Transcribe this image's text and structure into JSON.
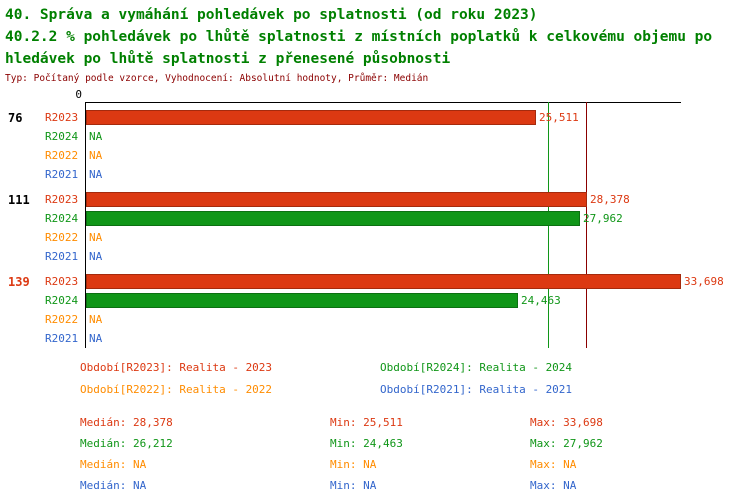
{
  "header": {
    "title_line1": "40. Správa a vymáhání pohledávek po splatnosti (od roku 2023)",
    "title_line2": "40.2.2 % pohledávek po lhůtě splatnosti z místních poplatků k celkovému objemu po",
    "title_line3": "hledávek po lhůtě splatnosti z přenesené působnosti",
    "meta": "Typ: Počítaný podle vzorce, Vyhodnocení: Absolutní hodnoty, Průměr: Medián"
  },
  "colors": {
    "title_green": "#008000",
    "meta_dark_red": "#8b0000",
    "axis_black": "#000000",
    "red": "#dc3912",
    "green": "#109618",
    "orange": "#ff8c00",
    "blue": "#3366cc"
  },
  "chart_data": {
    "type": "bar",
    "orientation": "horizontal",
    "zero_label": "0",
    "xmax": 33698,
    "grid": false,
    "series_colors": {
      "R2023": "#dc3912",
      "R2024": "#109618",
      "R2022": "#ff8c00",
      "R2021": "#3366cc"
    },
    "groups": [
      {
        "label": "76",
        "label_color": "#000000",
        "rows": [
          {
            "series": "R2023",
            "value": 25511,
            "display": "25,511"
          },
          {
            "series": "R2024",
            "value": null,
            "display": "NA"
          },
          {
            "series": "R2022",
            "value": null,
            "display": "NA"
          },
          {
            "series": "R2021",
            "value": null,
            "display": "NA"
          }
        ]
      },
      {
        "label": "111",
        "label_color": "#000000",
        "rows": [
          {
            "series": "R2023",
            "value": 28378,
            "display": "28,378"
          },
          {
            "series": "R2024",
            "value": 27962,
            "display": "27,962"
          },
          {
            "series": "R2022",
            "value": null,
            "display": "NA"
          },
          {
            "series": "R2021",
            "value": null,
            "display": "NA"
          }
        ]
      },
      {
        "label": "139",
        "label_color": "#dc3912",
        "rows": [
          {
            "series": "R2023",
            "value": 33698,
            "display": "33,698"
          },
          {
            "series": "R2024",
            "value": 24463,
            "display": "24,463"
          },
          {
            "series": "R2022",
            "value": null,
            "display": "NA"
          },
          {
            "series": "R2021",
            "value": null,
            "display": "NA"
          }
        ]
      }
    ],
    "reference_lines": [
      {
        "value": 26212,
        "color": "#109618",
        "label": "median-R2024"
      },
      {
        "value": 28378,
        "color": "#8b0000",
        "label": "median-R2023"
      }
    ]
  },
  "legend": [
    {
      "text": "Období[R2023]: Realita - 2023",
      "color": "#dc3912"
    },
    {
      "text": "Období[R2024]: Realita - 2024",
      "color": "#109618"
    },
    {
      "text": "Období[R2022]: Realita - 2022",
      "color": "#ff8c00"
    },
    {
      "text": "Období[R2021]: Realita - 2021",
      "color": "#3366cc"
    }
  ],
  "stats": [
    {
      "color": "#dc3912",
      "median": "Medián: 28,378",
      "min": "Min: 25,511",
      "max": "Max: 33,698"
    },
    {
      "color": "#109618",
      "median": "Medián: 26,212",
      "min": "Min: 24,463",
      "max": "Max: 27,962"
    },
    {
      "color": "#ff8c00",
      "median": "Medián: NA",
      "min": "Min: NA",
      "max": "Max: NA"
    },
    {
      "color": "#3366cc",
      "median": "Medián: NA",
      "min": "Min: NA",
      "max": "Max: NA"
    }
  ]
}
